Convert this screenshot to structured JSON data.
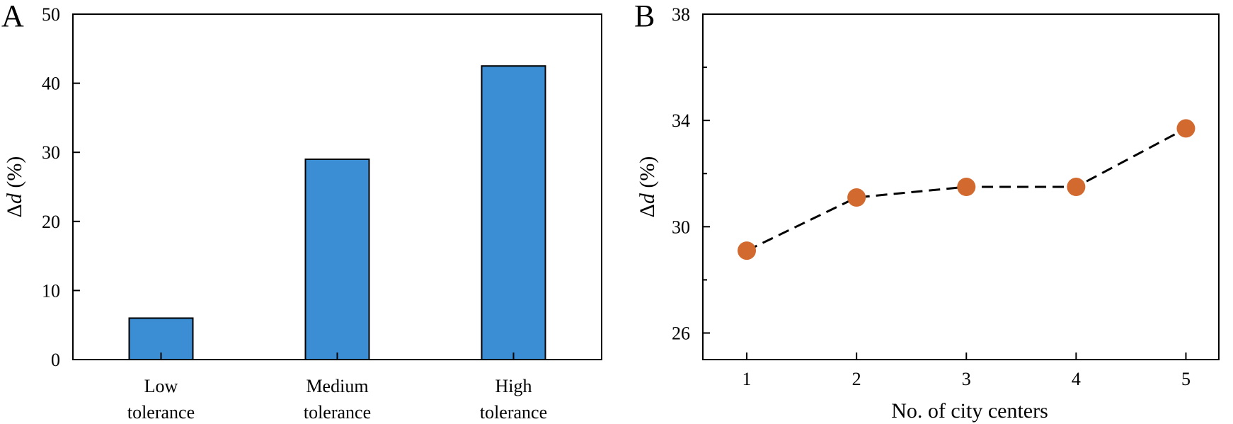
{
  "chart_data": [
    {
      "panel_label": "A",
      "type": "bar",
      "categories": [
        [
          "Low",
          "tolerance"
        ],
        [
          "Medium",
          "tolerance"
        ],
        [
          "High",
          "tolerance"
        ]
      ],
      "values": [
        6,
        29,
        42.5
      ],
      "ylabel_symbol": "Δ",
      "ylabel_var": "d",
      "ylabel_unit": " (%)",
      "xlabel": "",
      "ylim": [
        0,
        50
      ],
      "yticks": [
        0,
        10,
        20,
        30,
        40,
        50
      ],
      "colors": {
        "bar": "#3b8ed3",
        "edge": "#000000"
      }
    },
    {
      "panel_label": "B",
      "type": "line",
      "x": [
        1,
        2,
        3,
        4,
        5
      ],
      "y": [
        29.1,
        31.1,
        31.5,
        31.5,
        33.7
      ],
      "xlim": [
        0.6,
        5.3
      ],
      "xticks": [
        1,
        2,
        3,
        4,
        5
      ],
      "ylim": [
        25,
        38
      ],
      "yticks": [
        26,
        30,
        34,
        38
      ],
      "yminor": [
        28,
        32,
        36
      ],
      "xlabel": "No. of city centers",
      "ylabel_symbol": "Δ",
      "ylabel_var": "d",
      "ylabel_unit": " (%)",
      "line_style": "dashed",
      "colors": {
        "marker": "#d2692e",
        "line": "#000000"
      }
    }
  ]
}
